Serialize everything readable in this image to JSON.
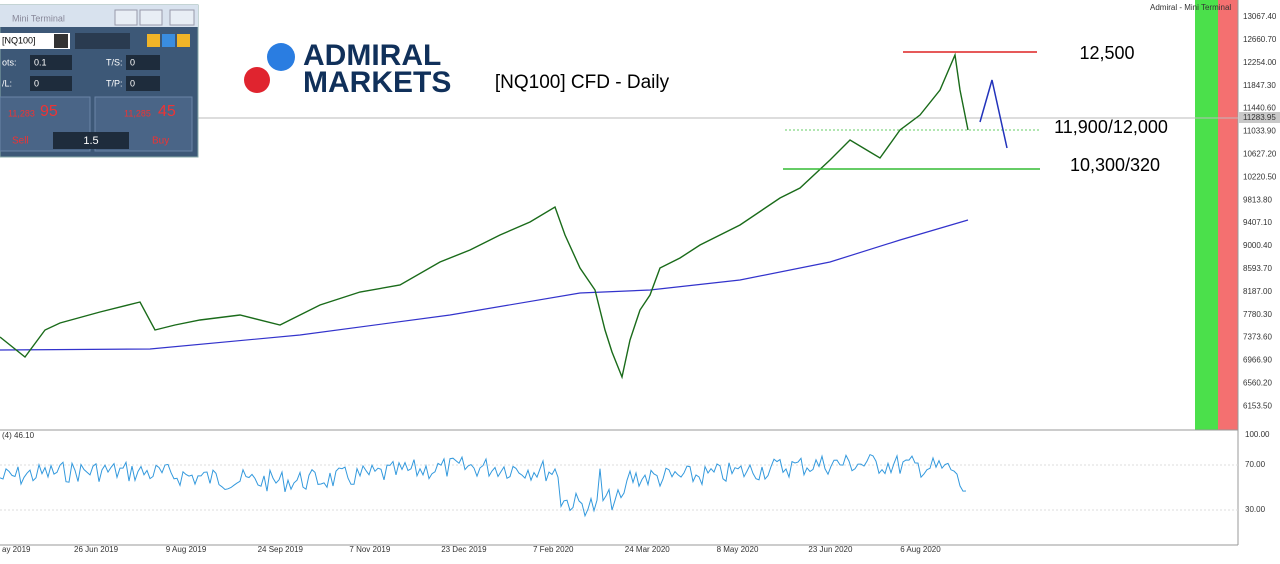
{
  "window_title": "Admiral - Mini Terminal",
  "chart_title": "[NQ100] CFD - Daily",
  "logo": {
    "line1": "ADMIRAL",
    "line2": "MARKETS"
  },
  "annotations": [
    "12,500",
    "11,900/12,000",
    "10,300/320"
  ],
  "price_axis": [
    "13067.40",
    "12660.70",
    "12254.00",
    "11847.30",
    "11440.60",
    "11033.90",
    "10627.20",
    "10220.50",
    "9813.80",
    "9407.10",
    "9000.40",
    "8593.70",
    "8187.00",
    "7780.30",
    "7373.60",
    "6966.90",
    "6560.20",
    "6153.50"
  ],
  "current_price": "11283.95",
  "rsi": {
    "label": "(4) 46.10",
    "axis": [
      "100.00",
      "70.00",
      "30.00"
    ]
  },
  "date_axis": [
    "ay 2019",
    "26 Jun 2019",
    "9 Aug 2019",
    "24 Sep 2019",
    "7 Nov 2019",
    "23 Dec 2019",
    "7 Feb 2020",
    "24 Mar 2020",
    "8 May 2020",
    "23 Jun 2020",
    "6 Aug 2020"
  ],
  "mini_terminal": {
    "title": "Mini Terminal",
    "symbol": "[NQ100]",
    "lots_label": "ots:",
    "lots": "0.1",
    "ts_label": "T/S:",
    "ts": "0",
    "sl_label": "/L:",
    "sl": "0",
    "tp_label": "T/P:",
    "tp": "0",
    "sell": {
      "main": "11,283",
      "pips": "95",
      "label": "Sell"
    },
    "buy": {
      "main": "11,285",
      "pips": "45",
      "label": "Buy"
    },
    "volume": "1.5"
  }
}
